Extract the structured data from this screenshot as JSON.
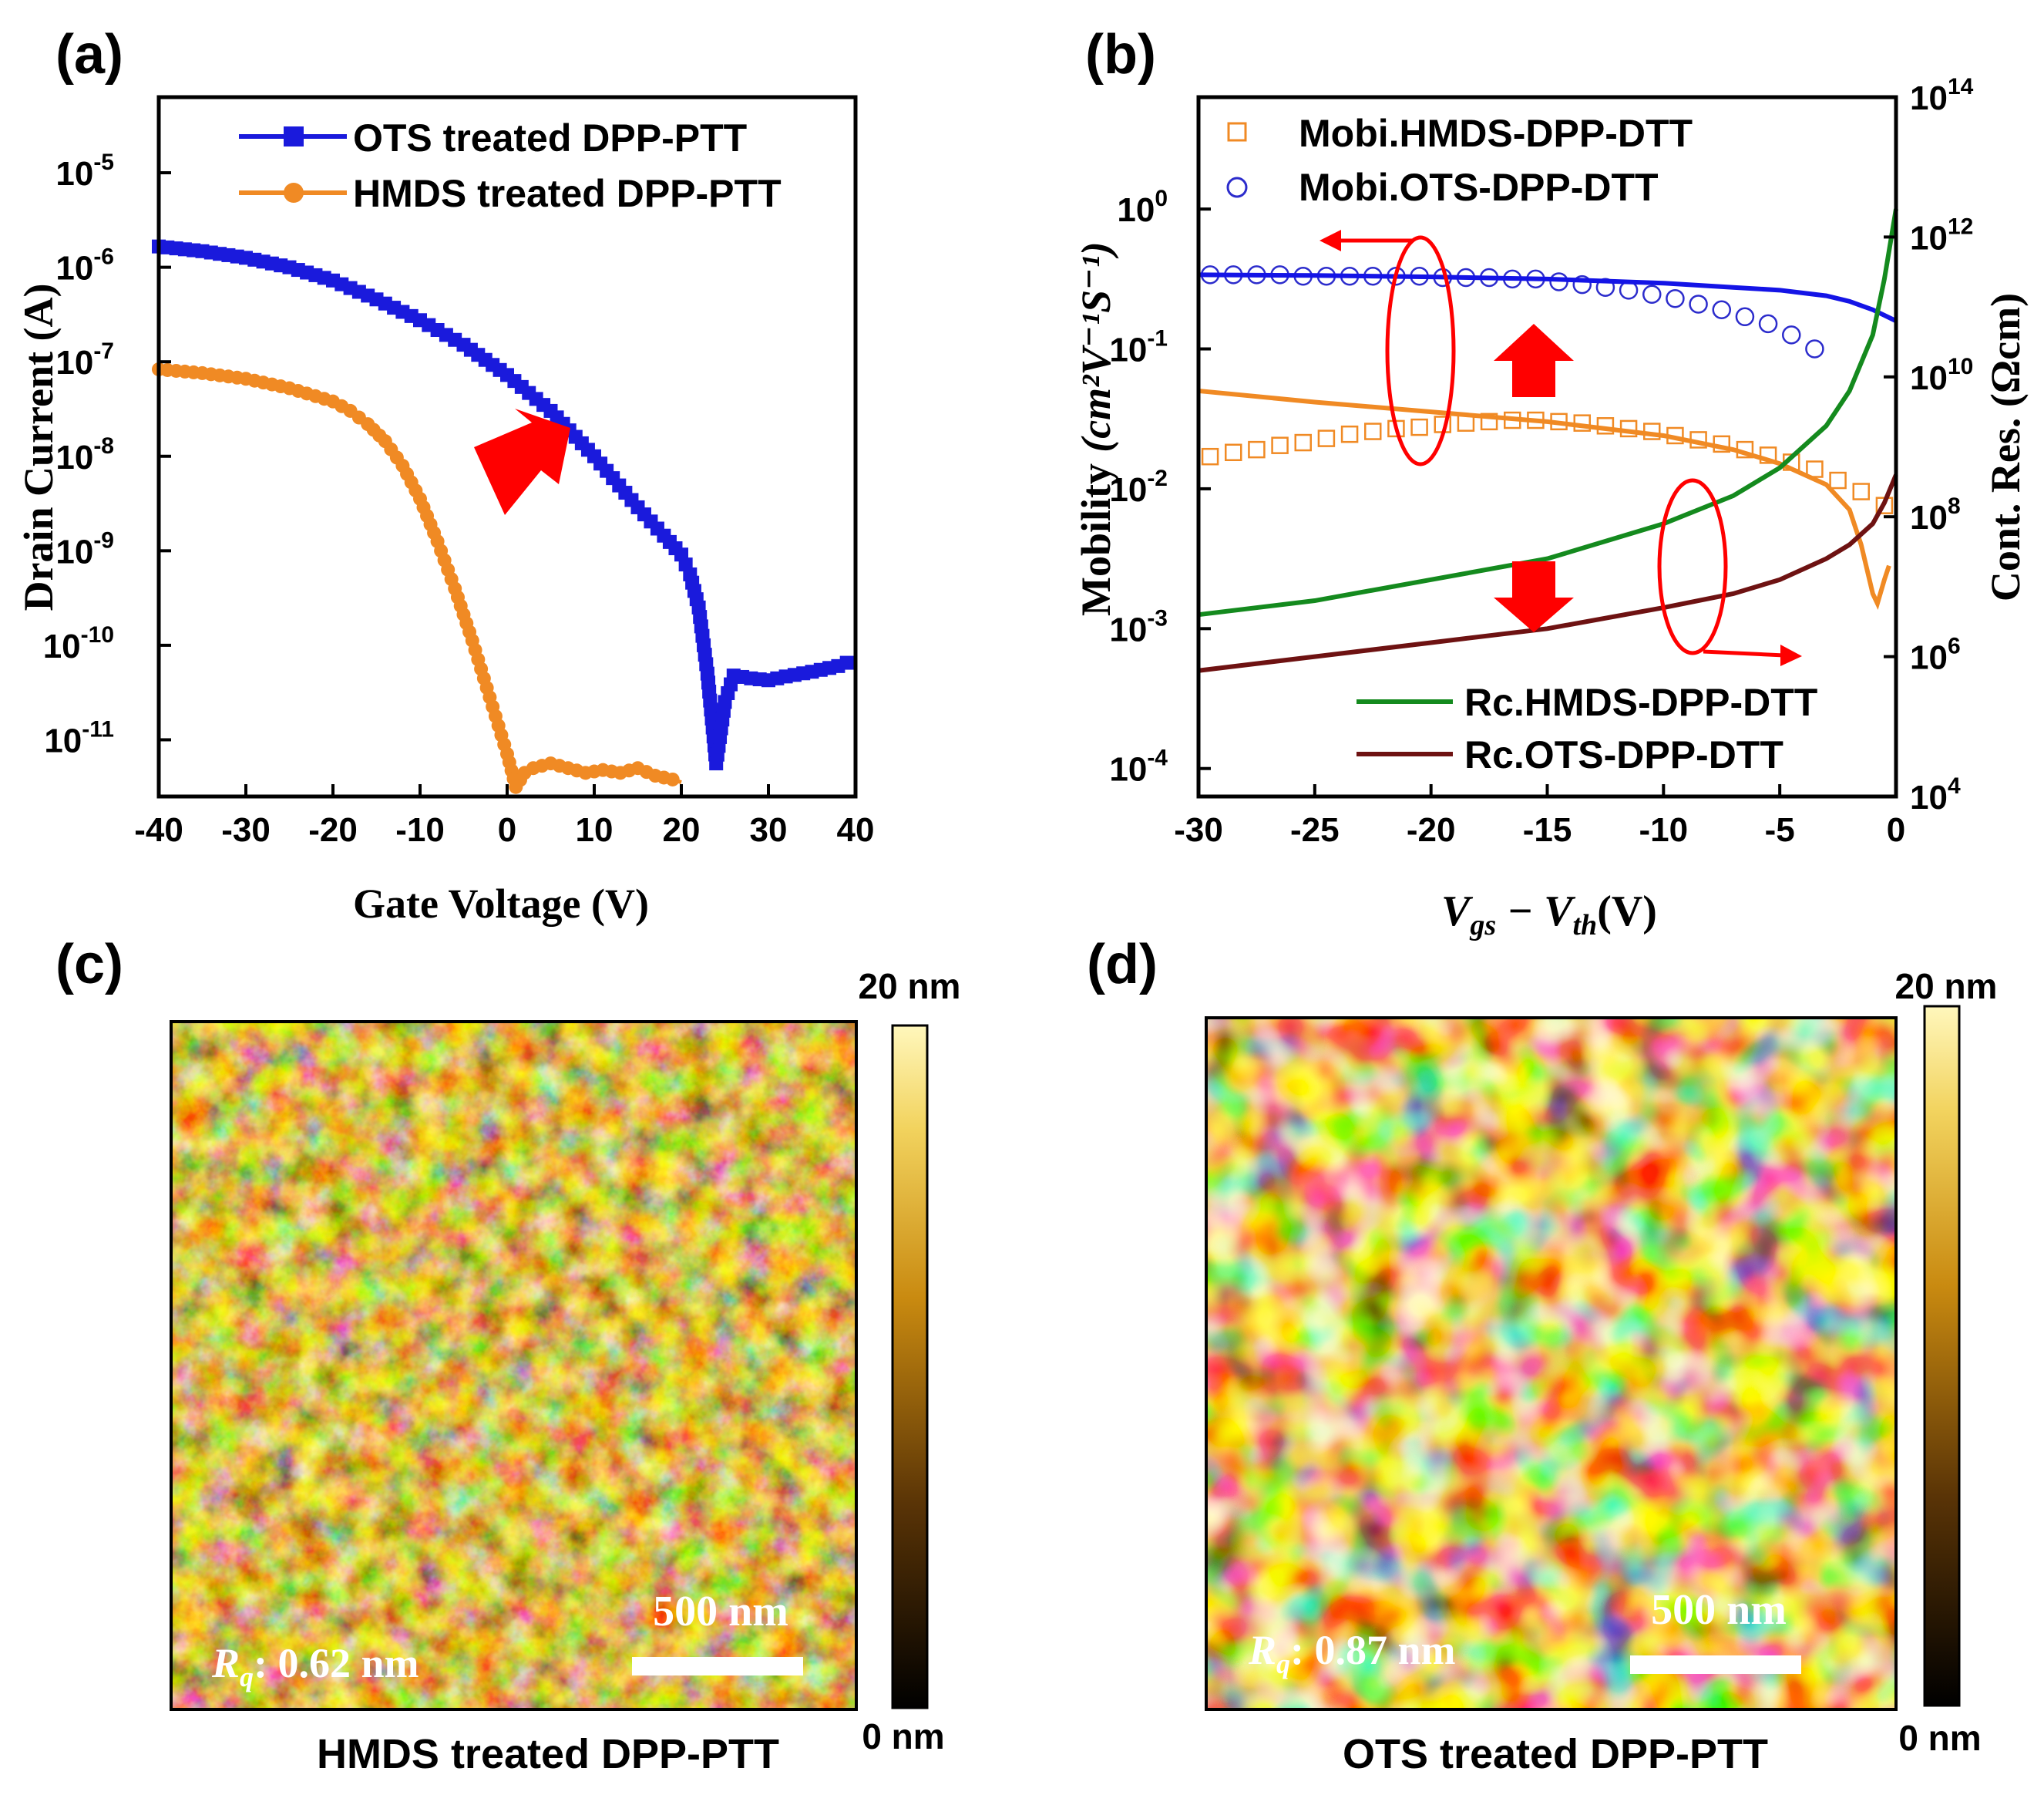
{
  "panels": {
    "a": {
      "label": "(a)",
      "chart_data": {
        "type": "line",
        "xlabel": "Gate Voltage (V)",
        "ylabel": "Drain Current (A)",
        "xlim": [
          -40,
          40
        ],
        "ylim_log10": [
          -11.6,
          -4.2
        ],
        "xticks": [
          -40,
          -30,
          -20,
          -10,
          0,
          10,
          20,
          30,
          40
        ],
        "yticks": [
          {
            "base": "10",
            "exp": "-5",
            "v": -5
          },
          {
            "base": "10",
            "exp": "-6",
            "v": -6
          },
          {
            "base": "10",
            "exp": "-7",
            "v": -7
          },
          {
            "base": "10",
            "exp": "-8",
            "v": -8
          },
          {
            "base": "10",
            "exp": "-9",
            "v": -9
          },
          {
            "base": "10",
            "exp": "-10",
            "v": -10
          },
          {
            "base": "10",
            "exp": "-11",
            "v": -11
          }
        ],
        "series": [
          {
            "name": "OTS treated DPP-PTT",
            "color": "#1a1adc",
            "marker": "square",
            "x": [
              -40,
              -35,
              -30,
              -25,
              -20,
              -15,
              -10,
              -5,
              0,
              5,
              10,
              15,
              18,
              20,
              21,
              22,
              23,
              24,
              25,
              26,
              28,
              30,
              32,
              35,
              38,
              40
            ],
            "log10_y": [
              -5.78,
              -5.83,
              -5.9,
              -6.0,
              -6.14,
              -6.34,
              -6.56,
              -6.82,
              -7.14,
              -7.52,
              -8.0,
              -8.54,
              -8.84,
              -9.04,
              -9.25,
              -9.6,
              -10.3,
              -11.25,
              -10.6,
              -10.32,
              -10.35,
              -10.37,
              -10.33,
              -10.28,
              -10.22,
              -10.15
            ]
          },
          {
            "name": "HMDS treated DPP-PTT",
            "color": "#f08a24",
            "marker": "circle",
            "x": [
              -40,
              -35,
              -30,
              -25,
              -20,
              -18,
              -16,
              -14,
              -12,
              -10,
              -8,
              -6,
              -4,
              -2,
              0,
              1,
              2,
              3,
              5,
              7,
              9,
              11,
              13,
              15,
              17,
              19,
              20
            ],
            "log10_y": [
              -7.08,
              -7.12,
              -7.18,
              -7.28,
              -7.42,
              -7.52,
              -7.66,
              -7.84,
              -8.1,
              -8.45,
              -8.9,
              -9.4,
              -9.95,
              -10.55,
              -11.15,
              -11.5,
              -11.35,
              -11.3,
              -11.25,
              -11.3,
              -11.35,
              -11.32,
              -11.35,
              -11.3,
              -11.38,
              -11.42,
              -11.45
            ]
          }
        ],
        "legend": [
          "OTS treated DPP-PTT",
          "HMDS treated DPP-PTT"
        ],
        "legend_position": "top-right"
      }
    },
    "b": {
      "label": "(b)",
      "chart_data": {
        "type": "line",
        "xlabel_main": "V",
        "xlabel_sub1": "gs",
        "xlabel_minus": " − V",
        "xlabel_sub2": "th",
        "xlabel_unit": "(V)",
        "ylabel_left": "Mobility",
        "ylabel_left_unit": "(cm²V⁻¹S⁻¹)",
        "ylabel_right": "Cont. Res. (Ωcm)",
        "xlim": [
          -30,
          0
        ],
        "ylim_left_log10": [
          -4.2,
          0.8
        ],
        "ylim_right_log10": [
          4,
          14
        ],
        "xticks": [
          -30,
          -25,
          -20,
          -15,
          -10,
          -5,
          0
        ],
        "yticks_left": [
          {
            "base": "10",
            "exp": "0",
            "v": 0
          },
          {
            "base": "10",
            "exp": "-1",
            "v": -1
          },
          {
            "base": "10",
            "exp": "-2",
            "v": -2
          },
          {
            "base": "10",
            "exp": "-3",
            "v": -3
          },
          {
            "base": "10",
            "exp": "-4",
            "v": -4
          }
        ],
        "yticks_right": [
          {
            "base": "10",
            "exp": "14",
            "v": 14
          },
          {
            "base": "10",
            "exp": "12",
            "v": 12
          },
          {
            "base": "10",
            "exp": "10",
            "v": 10
          },
          {
            "base": "10",
            "exp": "8",
            "v": 8
          },
          {
            "base": "10",
            "exp": "6",
            "v": 6
          },
          {
            "base": "10",
            "exp": "4",
            "v": 4
          }
        ],
        "series": [
          {
            "name": "Mobi.HMDS-DPP-DTT",
            "axis": "left",
            "color": "#f08a24",
            "marker": "square-open",
            "x": [
              -29.5,
              -28.5,
              -27.5,
              -26.5,
              -25.5,
              -24.5,
              -23.5,
              -22.5,
              -21.5,
              -20.5,
              -19.5,
              -18.5,
              -17.5,
              -16.5,
              -15.5,
              -14.5,
              -13.5,
              -12.5,
              -11.5,
              -10.5,
              -9.5,
              -8.5,
              -7.5,
              -6.5,
              -5.5,
              -4.5,
              -3.5,
              -2.5,
              -1.5,
              -0.5
            ],
            "log10_y": [
              -1.77,
              -1.74,
              -1.72,
              -1.69,
              -1.67,
              -1.64,
              -1.61,
              -1.59,
              -1.57,
              -1.56,
              -1.54,
              -1.53,
              -1.52,
              -1.51,
              -1.51,
              -1.52,
              -1.53,
              -1.55,
              -1.57,
              -1.59,
              -1.62,
              -1.65,
              -1.68,
              -1.72,
              -1.76,
              -1.81,
              -1.86,
              -1.94,
              -2.02,
              -2.12
            ]
          },
          {
            "name": "Mobi.OTS-DPP-DTT",
            "axis": "left",
            "color": "#2c2ccc",
            "marker": "circle-open",
            "x": [
              -29.5,
              -28.5,
              -27.5,
              -26.5,
              -25.5,
              -24.5,
              -23.5,
              -22.5,
              -21.5,
              -20.5,
              -19.5,
              -18.5,
              -17.5,
              -16.5,
              -15.5,
              -14.5,
              -13.5,
              -12.5,
              -11.5,
              -10.5,
              -9.5,
              -8.5,
              -7.5,
              -6.5,
              -5.5,
              -4.5,
              -3.5
            ],
            "log10_y": [
              -0.47,
              -0.47,
              -0.47,
              -0.47,
              -0.48,
              -0.48,
              -0.48,
              -0.48,
              -0.48,
              -0.48,
              -0.49,
              -0.49,
              -0.49,
              -0.5,
              -0.5,
              -0.52,
              -0.54,
              -0.56,
              -0.58,
              -0.61,
              -0.64,
              -0.68,
              -0.72,
              -0.77,
              -0.82,
              -0.9,
              -1.0
            ]
          },
          {
            "name": "Mobi.OTS-DPP-DTT (fit)",
            "axis": "left",
            "color": "#1414e6",
            "marker": "none",
            "x": [
              -30,
              -25,
              -20,
              -15,
              -10,
              -7,
              -5,
              -3,
              -2,
              -1,
              -0.5,
              0
            ],
            "log10_y": [
              -0.47,
              -0.475,
              -0.485,
              -0.5,
              -0.53,
              -0.56,
              -0.58,
              -0.62,
              -0.66,
              -0.72,
              -0.76,
              -0.8
            ]
          },
          {
            "name": "Mobi.HMDS-DPP-DTT (fit)",
            "axis": "left",
            "color": "#f08a24",
            "marker": "none",
            "x": [
              -30,
              -25,
              -20,
              -15,
              -10,
              -7,
              -5,
              -3,
              -2,
              -1.5,
              -1.0,
              -0.8,
              -0.5,
              -0.3
            ],
            "log10_y": [
              -1.3,
              -1.38,
              -1.45,
              -1.52,
              -1.62,
              -1.72,
              -1.82,
              -1.97,
              -2.15,
              -2.4,
              -2.75,
              -2.82,
              -2.65,
              -2.55
            ]
          },
          {
            "name": "Rc.HMDS-DPP-DTT",
            "axis": "right",
            "color": "#148a1e",
            "marker": "none",
            "x": [
              -30,
              -25,
              -20,
              -15,
              -10,
              -7,
              -5,
              -3,
              -2,
              -1,
              -0.5,
              0
            ],
            "log10_y": [
              6.6,
              6.8,
              7.1,
              7.4,
              7.9,
              8.3,
              8.7,
              9.3,
              9.8,
              10.6,
              11.4,
              12.4
            ]
          },
          {
            "name": "Rc.OTS-DPP-DTT",
            "axis": "right",
            "color": "#6e1212",
            "marker": "none",
            "x": [
              -30,
              -25,
              -20,
              -15,
              -10,
              -7,
              -5,
              -3,
              -2,
              -1,
              -0.5,
              0
            ],
            "log10_y": [
              5.8,
              6.0,
              6.2,
              6.4,
              6.7,
              6.9,
              7.1,
              7.4,
              7.6,
              7.9,
              8.2,
              8.6
            ]
          }
        ],
        "legend_top": [
          "Mobi.HMDS-DPP-DTT",
          "Mobi.OTS-DPP-DTT"
        ],
        "legend_bottom": [
          "Rc.HMDS-DPP-DTT",
          "Rc.OTS-DPP-DTT"
        ]
      }
    },
    "c": {
      "label": "(c)",
      "colorbar_max": "20 nm",
      "colorbar_min": "0 nm",
      "scalebar": "500 nm",
      "rq_symbol": "R",
      "rq_sub": "q",
      "rq_value": ": 0.62 nm",
      "caption": "HMDS treated DPP-PTT"
    },
    "d": {
      "label": "(d)",
      "colorbar_max": "20 nm",
      "colorbar_min": "0 nm",
      "scalebar": "500 nm",
      "rq_symbol": "R",
      "rq_sub": "q",
      "rq_value": ": 0.87 nm",
      "caption": "OTS treated DPP-PTT"
    }
  },
  "colors": {
    "annotation_red": "#ff0000",
    "afm_dark": "#2a1604",
    "afm_light": "#fff3a6"
  }
}
